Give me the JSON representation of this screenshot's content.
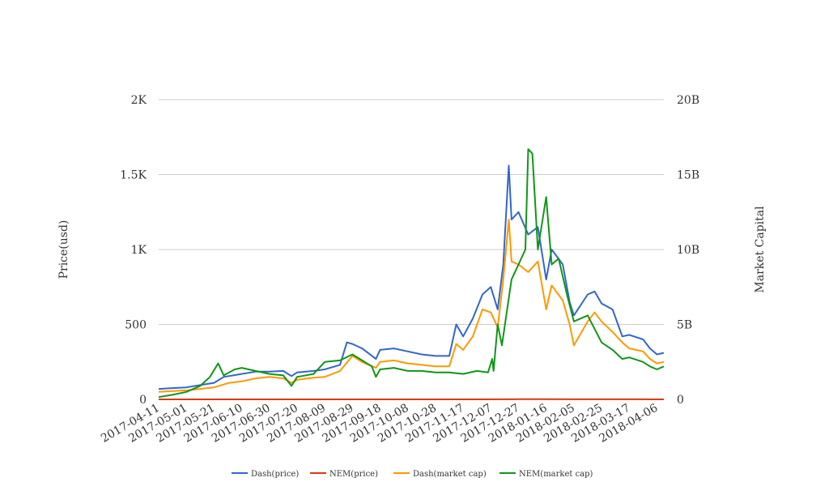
{
  "chart_data": {
    "type": "line",
    "title": "",
    "y_left_label": "Price(usd)",
    "y_right_label": "Market Capital",
    "y_left_ticks": [
      "0",
      "500",
      "1K",
      "1.5K",
      "2K"
    ],
    "y_right_ticks": [
      "0",
      "5B",
      "10B",
      "15B",
      "20B"
    ],
    "y_left_range": [
      0,
      2000
    ],
    "y_right_range": [
      0,
      20000000000
    ],
    "x_range": [
      "2017-04-11",
      "2018-04-11"
    ],
    "x_ticks": [
      "2017-04-11",
      "2017-05-01",
      "2017-05-21",
      "2017-06-10",
      "2017-06-30",
      "2017-07-20",
      "2017-08-09",
      "2017-08-29",
      "2017-09-18",
      "2017-10-08",
      "2017-10-28",
      "2017-11-17",
      "2017-12-07",
      "2017-12-27",
      "2018-01-16",
      "2018-02-05",
      "2018-02-25",
      "2018-03-17",
      "2018-04-06"
    ],
    "grid": true,
    "legend_position": "bottom",
    "series": [
      {
        "name": "Dash(price)",
        "axis": "left",
        "color": "#3366cc",
        "points": [
          [
            "2017-04-11",
            70
          ],
          [
            "2017-04-21",
            75
          ],
          [
            "2017-05-01",
            80
          ],
          [
            "2017-05-11",
            95
          ],
          [
            "2017-05-21",
            110
          ],
          [
            "2017-05-28",
            150
          ],
          [
            "2017-06-10",
            170
          ],
          [
            "2017-06-20",
            185
          ],
          [
            "2017-06-30",
            185
          ],
          [
            "2017-07-10",
            190
          ],
          [
            "2017-07-16",
            155
          ],
          [
            "2017-07-20",
            180
          ],
          [
            "2017-08-01",
            190
          ],
          [
            "2017-08-09",
            200
          ],
          [
            "2017-08-20",
            230
          ],
          [
            "2017-08-25",
            380
          ],
          [
            "2017-08-29",
            370
          ],
          [
            "2017-09-05",
            340
          ],
          [
            "2017-09-15",
            270
          ],
          [
            "2017-09-18",
            330
          ],
          [
            "2017-09-28",
            340
          ],
          [
            "2017-10-08",
            320
          ],
          [
            "2017-10-18",
            300
          ],
          [
            "2017-10-28",
            290
          ],
          [
            "2017-11-07",
            290
          ],
          [
            "2017-11-12",
            500
          ],
          [
            "2017-11-17",
            420
          ],
          [
            "2017-11-24",
            540
          ],
          [
            "2017-12-01",
            700
          ],
          [
            "2017-12-07",
            750
          ],
          [
            "2017-12-12",
            600
          ],
          [
            "2017-12-16",
            900
          ],
          [
            "2017-12-20",
            1560
          ],
          [
            "2017-12-22",
            1200
          ],
          [
            "2017-12-27",
            1250
          ],
          [
            "2018-01-03",
            1100
          ],
          [
            "2018-01-10",
            1150
          ],
          [
            "2018-01-16",
            800
          ],
          [
            "2018-01-20",
            1000
          ],
          [
            "2018-01-28",
            900
          ],
          [
            "2018-02-02",
            650
          ],
          [
            "2018-02-05",
            560
          ],
          [
            "2018-02-15",
            700
          ],
          [
            "2018-02-20",
            720
          ],
          [
            "2018-02-25",
            640
          ],
          [
            "2018-03-05",
            600
          ],
          [
            "2018-03-12",
            420
          ],
          [
            "2018-03-17",
            430
          ],
          [
            "2018-03-27",
            400
          ],
          [
            "2018-04-01",
            340
          ],
          [
            "2018-04-06",
            300
          ],
          [
            "2018-04-11",
            310
          ]
        ]
      },
      {
        "name": "NEM(price)",
        "axis": "left",
        "color": "#dc3912",
        "points": [
          [
            "2017-04-11",
            0.02
          ],
          [
            "2017-06-10",
            0.2
          ],
          [
            "2017-08-29",
            0.25
          ],
          [
            "2017-11-17",
            0.2
          ],
          [
            "2017-12-27",
            1.0
          ],
          [
            "2018-01-10",
            1.6
          ],
          [
            "2018-02-05",
            0.5
          ],
          [
            "2018-03-17",
            0.3
          ],
          [
            "2018-04-11",
            0.2
          ]
        ]
      },
      {
        "name": "Dash(market cap)",
        "axis": "right",
        "color": "#ff9900",
        "points": [
          [
            "2017-04-11",
            500000000
          ],
          [
            "2017-04-21",
            550000000
          ],
          [
            "2017-05-01",
            600000000
          ],
          [
            "2017-05-11",
            700000000
          ],
          [
            "2017-05-21",
            800000000
          ],
          [
            "2017-06-01",
            1100000000
          ],
          [
            "2017-06-10",
            1200000000
          ],
          [
            "2017-06-20",
            1400000000
          ],
          [
            "2017-06-30",
            1500000000
          ],
          [
            "2017-07-10",
            1400000000
          ],
          [
            "2017-07-16",
            1100000000
          ],
          [
            "2017-07-20",
            1300000000
          ],
          [
            "2017-08-01",
            1450000000
          ],
          [
            "2017-08-09",
            1500000000
          ],
          [
            "2017-08-20",
            1900000000
          ],
          [
            "2017-08-29",
            2900000000
          ],
          [
            "2017-09-05",
            2500000000
          ],
          [
            "2017-09-15",
            2100000000
          ],
          [
            "2017-09-18",
            2500000000
          ],
          [
            "2017-09-28",
            2600000000
          ],
          [
            "2017-10-08",
            2400000000
          ],
          [
            "2017-10-18",
            2300000000
          ],
          [
            "2017-10-28",
            2200000000
          ],
          [
            "2017-11-07",
            2200000000
          ],
          [
            "2017-11-12",
            3700000000
          ],
          [
            "2017-11-17",
            3300000000
          ],
          [
            "2017-11-24",
            4200000000
          ],
          [
            "2017-12-01",
            6000000000
          ],
          [
            "2017-12-07",
            5800000000
          ],
          [
            "2017-12-12",
            4800000000
          ],
          [
            "2017-12-16",
            8000000000
          ],
          [
            "2017-12-20",
            12000000000
          ],
          [
            "2017-12-22",
            9200000000
          ],
          [
            "2017-12-27",
            9000000000
          ],
          [
            "2018-01-03",
            8500000000
          ],
          [
            "2018-01-10",
            9200000000
          ],
          [
            "2018-01-16",
            6000000000
          ],
          [
            "2018-01-20",
            7600000000
          ],
          [
            "2018-01-28",
            6600000000
          ],
          [
            "2018-02-02",
            5000000000
          ],
          [
            "2018-02-05",
            3600000000
          ],
          [
            "2018-02-15",
            5200000000
          ],
          [
            "2018-02-20",
            5800000000
          ],
          [
            "2018-02-25",
            5200000000
          ],
          [
            "2018-03-05",
            4500000000
          ],
          [
            "2018-03-12",
            3800000000
          ],
          [
            "2018-03-17",
            3400000000
          ],
          [
            "2018-03-27",
            3200000000
          ],
          [
            "2018-04-01",
            2700000000
          ],
          [
            "2018-04-06",
            2400000000
          ],
          [
            "2018-04-11",
            2500000000
          ]
        ]
      },
      {
        "name": "NEM(market cap)",
        "axis": "right",
        "color": "#109618",
        "points": [
          [
            "2017-04-11",
            150000000
          ],
          [
            "2017-04-21",
            300000000
          ],
          [
            "2017-05-01",
            500000000
          ],
          [
            "2017-05-11",
            900000000
          ],
          [
            "2017-05-18",
            1500000000
          ],
          [
            "2017-05-24",
            2400000000
          ],
          [
            "2017-05-28",
            1600000000
          ],
          [
            "2017-06-05",
            2000000000
          ],
          [
            "2017-06-10",
            2100000000
          ],
          [
            "2017-06-20",
            1900000000
          ],
          [
            "2017-06-30",
            1700000000
          ],
          [
            "2017-07-10",
            1600000000
          ],
          [
            "2017-07-16",
            900000000
          ],
          [
            "2017-07-20",
            1500000000
          ],
          [
            "2017-08-01",
            1700000000
          ],
          [
            "2017-08-09",
            2500000000
          ],
          [
            "2017-08-20",
            2600000000
          ],
          [
            "2017-08-29",
            3000000000
          ],
          [
            "2017-09-05",
            2600000000
          ],
          [
            "2017-09-12",
            2200000000
          ],
          [
            "2017-09-15",
            1500000000
          ],
          [
            "2017-09-18",
            2000000000
          ],
          [
            "2017-09-28",
            2100000000
          ],
          [
            "2017-10-08",
            1900000000
          ],
          [
            "2017-10-18",
            1900000000
          ],
          [
            "2017-10-28",
            1800000000
          ],
          [
            "2017-11-07",
            1800000000
          ],
          [
            "2017-11-17",
            1700000000
          ],
          [
            "2017-11-27",
            1900000000
          ],
          [
            "2017-12-05",
            1800000000
          ],
          [
            "2017-12-08",
            2700000000
          ],
          [
            "2017-12-09",
            1900000000
          ],
          [
            "2017-12-12",
            5000000000
          ],
          [
            "2017-12-15",
            3600000000
          ],
          [
            "2017-12-22",
            8000000000
          ],
          [
            "2017-12-27",
            9000000000
          ],
          [
            "2018-01-01",
            10000000000
          ],
          [
            "2018-01-03",
            16700000000
          ],
          [
            "2018-01-06",
            16400000000
          ],
          [
            "2018-01-10",
            10000000000
          ],
          [
            "2018-01-16",
            13500000000
          ],
          [
            "2018-01-20",
            9000000000
          ],
          [
            "2018-01-25",
            9400000000
          ],
          [
            "2018-01-31",
            7000000000
          ],
          [
            "2018-02-05",
            5200000000
          ],
          [
            "2018-02-15",
            5600000000
          ],
          [
            "2018-02-25",
            3800000000
          ],
          [
            "2018-03-05",
            3300000000
          ],
          [
            "2018-03-12",
            2700000000
          ],
          [
            "2018-03-17",
            2800000000
          ],
          [
            "2018-03-27",
            2500000000
          ],
          [
            "2018-04-01",
            2200000000
          ],
          [
            "2018-04-06",
            2000000000
          ],
          [
            "2018-04-11",
            2200000000
          ]
        ]
      }
    ]
  }
}
